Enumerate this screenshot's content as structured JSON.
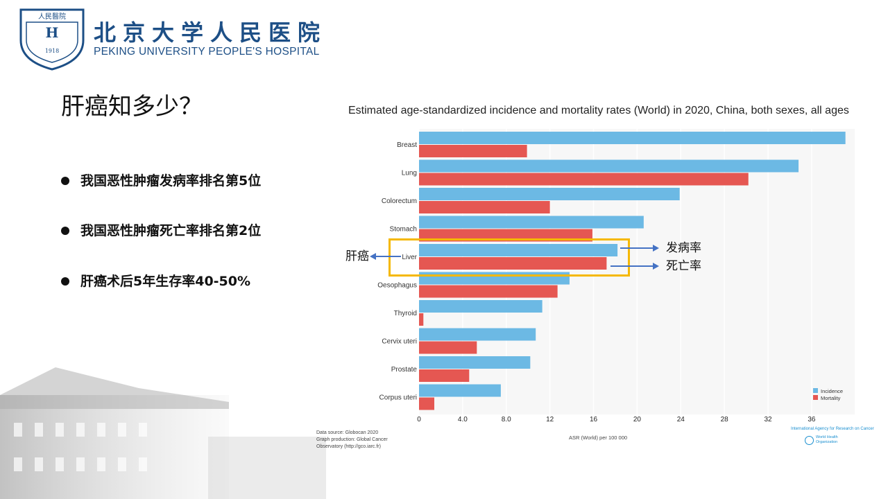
{
  "logo": {
    "cn": "北京大学人民医院",
    "en": "PEKING UNIVERSITY PEOPLE'S HOSPITAL",
    "seal_text": "人民醫院 PEKING UNIVERSITY PEOPLE'S HOSPITAL 1918"
  },
  "slide": {
    "title": "肝癌知多少？",
    "bullets": [
      "我国恶性肿瘤发病率排名第5位",
      "我国恶性肿瘤死亡率排名第2位",
      "肝癌术后5年生存率40-50%"
    ]
  },
  "annotations": {
    "left": "肝癌",
    "incidence": "发病率",
    "mortality": "死亡率",
    "highlight_color": "#f5b800",
    "arrow_color": "#4472c4"
  },
  "chart_data": {
    "type": "bar",
    "orientation": "horizontal",
    "title": "Estimated age-standardized incidence and mortality rates (World) in 2020, China, both sexes, all ages",
    "xlabel": "ASR (World) per 100 000",
    "xlim": [
      0,
      39
    ],
    "xticks": [
      "0",
      "4.0",
      "8.0",
      "12",
      "16",
      "20",
      "24",
      "28",
      "32",
      "36"
    ],
    "xtick_values": [
      0,
      4,
      8,
      12,
      16,
      20,
      24,
      28,
      32,
      36
    ],
    "categories": [
      "Breast",
      "Lung",
      "Colorectum",
      "Stomach",
      "Liver",
      "Oesophagus",
      "Thyroid",
      "Cervix uteri",
      "Prostate",
      "Corpus uteri"
    ],
    "series": [
      {
        "name": "Incidence",
        "color": "#6cb9e4",
        "values": [
          39.1,
          34.8,
          23.9,
          20.6,
          18.2,
          13.8,
          11.3,
          10.7,
          10.2,
          7.5
        ]
      },
      {
        "name": "Mortality",
        "color": "#e55752",
        "values": [
          9.9,
          30.2,
          12.0,
          15.9,
          17.2,
          12.7,
          0.4,
          5.3,
          4.6,
          1.4
        ]
      }
    ],
    "legend": "bottom-right",
    "grid": true,
    "footnote": [
      "Data source: Globocan 2020",
      "Graph production: Global Cancer",
      "Observatory (http://gco.iarc.fr)"
    ],
    "credits": {
      "iarc": "International Agency for Research on Cancer",
      "who": "World Health Organization"
    }
  }
}
